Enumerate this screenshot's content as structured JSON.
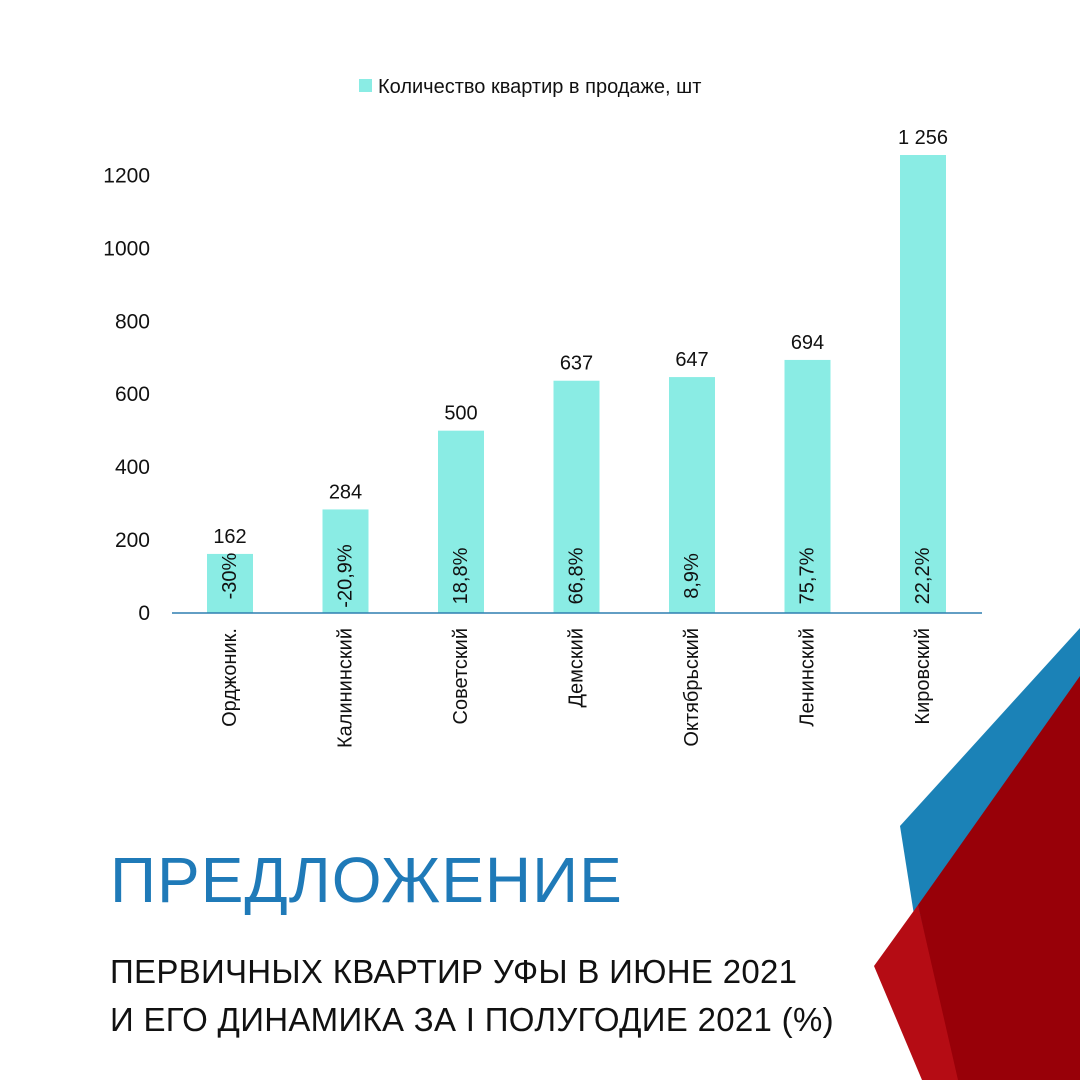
{
  "colors": {
    "bar": "#8aece4",
    "axis_line": "#2f7fb0",
    "headline": "#1f7ab8",
    "deco_blue": "#1b82b7",
    "deco_red": "#b50c14",
    "deco_darkred": "#980008"
  },
  "chart_data": {
    "type": "bar",
    "legend": "Количество квартир в продаже, шт",
    "legend_position": "top-center",
    "categories": [
      "Орджоник.",
      "Калининский",
      "Советский",
      "Демский",
      "Октябрьский",
      "Ленинский",
      "Кировский"
    ],
    "values": [
      162,
      284,
      500,
      637,
      647,
      694,
      1256
    ],
    "value_labels": [
      "162",
      "284",
      "500",
      "637",
      "647",
      "694",
      "1 256"
    ],
    "change_labels": [
      "-30%",
      "-20,9%",
      "18,8%",
      "66,8%",
      "8,9%",
      "75,7%",
      "22,2%"
    ],
    "y_ticks": [
      0,
      200,
      400,
      600,
      800,
      1000,
      1200
    ],
    "ylim": [
      0,
      1256
    ],
    "grid": false
  },
  "title": {
    "headline": "ПРЕДЛОЖЕНИЕ",
    "line1": "ПЕРВИЧНЫХ КВАРТИР УФЫ В ИЮНЕ 2021",
    "line2_main": "И ЕГО ДИНАМИКА ЗА I ПОЛУГОДИЕ 2021 ",
    "line2_suffix": "(%)"
  }
}
